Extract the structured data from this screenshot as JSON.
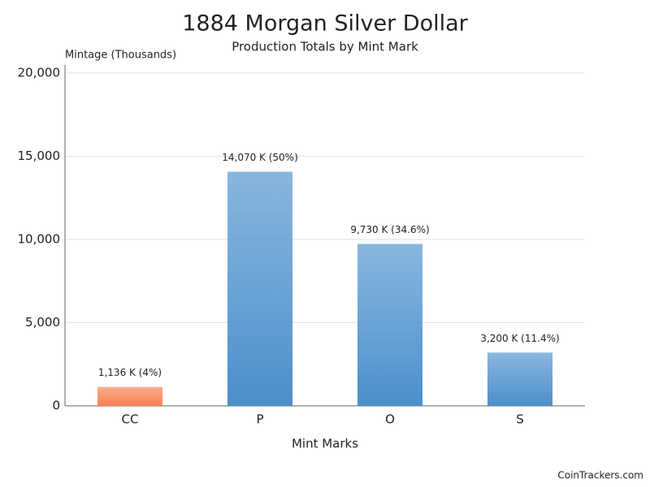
{
  "chart_data": {
    "type": "bar",
    "title": "1884 Morgan Silver Dollar",
    "subtitle": "Production Totals by Mint Mark",
    "y_label": "Mintage (Thousands)",
    "x_label": "Mint Marks",
    "categories": [
      "CC",
      "P",
      "O",
      "S"
    ],
    "values": [
      1136,
      14070,
      9730,
      3200
    ],
    "value_labels": [
      "1,136 K (4%)",
      "14,070 K (50%)",
      "9,730 K (34.6%)",
      "3,200 K (11.4%)"
    ],
    "colors": [
      "#f8804f",
      "#4b8fcc",
      "#4b8fcc",
      "#4b8fcc"
    ],
    "ylim": [
      0,
      20000
    ],
    "yticks": [
      0,
      {
        "value": 5000,
        "label": "5,000"
      },
      {
        "value": 10000,
        "label": "10,000"
      },
      {
        "value": 15000,
        "label": "15,000"
      },
      {
        "value": 20000,
        "label": "20,000"
      }
    ],
    "grid": true,
    "credit": "CoinTrackers.com"
  }
}
